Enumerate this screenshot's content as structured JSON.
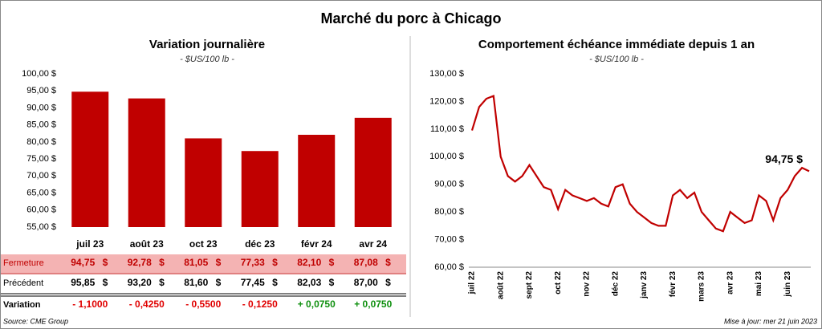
{
  "title": "Marché du porc à Chicago",
  "chart_data": [
    {
      "type": "bar",
      "title": "Variation journalière",
      "subtitle": "- $US/100 lb -",
      "categories": [
        "juil 23",
        "août 23",
        "oct 23",
        "déc 23",
        "févr 24",
        "avr 24"
      ],
      "values": [
        94.75,
        92.78,
        81.05,
        77.33,
        82.1,
        87.08
      ],
      "color": "#c00000",
      "ylim": [
        55,
        100
      ],
      "yticks": [
        {
          "value": 55,
          "label": "55,00 $"
        },
        {
          "value": 60,
          "label": "60,00 $"
        },
        {
          "value": 65,
          "label": "65,00 $"
        },
        {
          "value": 70,
          "label": "70,00 $"
        },
        {
          "value": 75,
          "label": "75,00 $"
        },
        {
          "value": 80,
          "label": "80,00 $"
        },
        {
          "value": 85,
          "label": "85,00 $"
        },
        {
          "value": 90,
          "label": "90,00 $"
        },
        {
          "value": 95,
          "label": "95,00 $"
        },
        {
          "value": 100,
          "label": "100,00 $"
        }
      ],
      "grid": false
    },
    {
      "type": "line",
      "title": "Comportement  échéance immédiate depuis 1 an",
      "subtitle": "- $US/100 lb -",
      "x": [
        "juil 22",
        null,
        null,
        null,
        "août 22",
        null,
        null,
        null,
        "sept 22",
        null,
        null,
        null,
        "oct 22",
        null,
        null,
        null,
        "nov 22",
        null,
        null,
        null,
        "déc 22",
        null,
        null,
        null,
        "janv 23",
        null,
        null,
        null,
        "févr 23",
        null,
        null,
        null,
        "mars 23",
        null,
        null,
        null,
        "avr 23",
        null,
        null,
        null,
        "mai 23",
        null,
        null,
        null,
        "juin 23",
        null,
        null,
        null
      ],
      "series": [
        {
          "name": "Échéance immédiate",
          "color": "#c00000",
          "values": [
            109.5,
            118,
            121,
            122,
            100,
            93,
            91,
            93,
            97,
            93,
            89,
            88,
            81,
            88,
            86,
            85,
            84,
            85,
            83,
            82,
            89,
            90,
            83,
            80,
            78,
            76,
            75,
            75,
            86,
            88,
            85,
            87,
            80,
            77,
            74,
            73,
            80,
            78,
            76,
            77,
            86,
            84,
            77,
            85,
            88,
            93,
            96,
            94.75
          ]
        }
      ],
      "annotation": "94,75 $",
      "ylim": [
        60,
        130
      ],
      "yticks": [
        {
          "value": 60,
          "label": "60,00 $"
        },
        {
          "value": 70,
          "label": "70,00 $"
        },
        {
          "value": 80,
          "label": "80,00 $"
        },
        {
          "value": 90,
          "label": "90,00 $"
        },
        {
          "value": 100,
          "label": "100,00 $"
        },
        {
          "value": 110,
          "label": "110,00 $"
        },
        {
          "value": 120,
          "label": "120,00 $"
        },
        {
          "value": 130,
          "label": "130,00 $"
        }
      ],
      "grid": false
    }
  ],
  "table": {
    "unit": "$",
    "rows": [
      {
        "label": "Fermeture",
        "cells": [
          "94,75",
          "92,78",
          "81,05",
          "77,33",
          "82,10",
          "87,08"
        ]
      },
      {
        "label": "Précédent",
        "cells": [
          "95,85",
          "93,20",
          "81,60",
          "77,45",
          "82,03",
          "87,00"
        ]
      },
      {
        "label": "Variation",
        "cells": [
          "- 1,1000",
          "- 0,4250",
          "- 0,5500",
          "- 0,1250",
          "+ 0,0750",
          "+ 0,0750"
        ]
      }
    ]
  },
  "footer": {
    "source": "Source: CME Group",
    "updated": "Mise à jour: mer 21 juin 2023"
  }
}
